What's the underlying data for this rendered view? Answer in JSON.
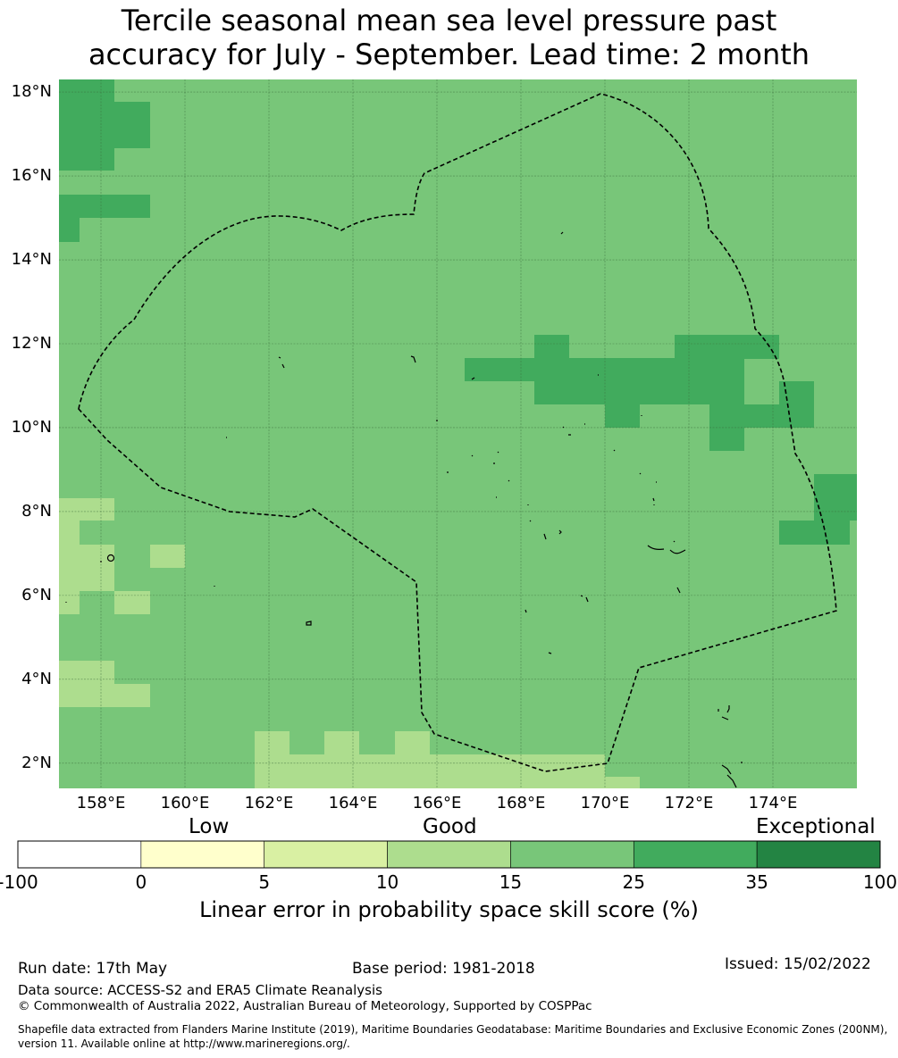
{
  "title": {
    "line1": "Tercile seasonal mean sea level pressure past",
    "line2": "accuracy for July - September. Lead time: 2 month"
  },
  "map": {
    "lon_range": [
      157.0,
      176.0
    ],
    "lat_range": [
      1.4,
      18.3
    ],
    "lon_ticks": [
      "158°E",
      "160°E",
      "162°E",
      "164°E",
      "166°E",
      "168°E",
      "170°E",
      "172°E",
      "174°E"
    ],
    "lat_ticks": [
      "2°N",
      "4°N",
      "6°N",
      "8°N",
      "10°N",
      "12°N",
      "14°N",
      "16°N",
      "18°N"
    ],
    "base_color": "#78c679",
    "boundary_style": "dashed black"
  },
  "colorbar": {
    "categories": [
      "Low",
      "Good",
      "Exceptional"
    ],
    "ticks": [
      "-100",
      "0",
      "5",
      "10",
      "15",
      "25",
      "35",
      "100"
    ],
    "colors": [
      "#ffffff",
      "#ffffcc",
      "#d9f0a3",
      "#addd8e",
      "#78c679",
      "#41ab5d",
      "#238443"
    ],
    "label": "Linear error in probability space skill score (%)"
  },
  "footer": {
    "run_date": "Run date: 17th May",
    "base_period": "Base period: 1981-2018",
    "issued": "Issued: 15/02/2022",
    "data_source": "Data source: ACCESS-S2 and ERA5 Climate Reanalysis",
    "copyright": "© Commonwealth of Australia 2022, Australian Bureau of Meteorology, Supported by COSPPac",
    "shapefile_line1": "Shapefile data extracted from Flanders Marine Institute (2019), Maritime Boundaries Geodatabase: Maritime Boundaries and Exclusive Economic Zones (200NM),",
    "shapefile_line2": "version 11. Available online at http://www.marineregions.org/."
  }
}
